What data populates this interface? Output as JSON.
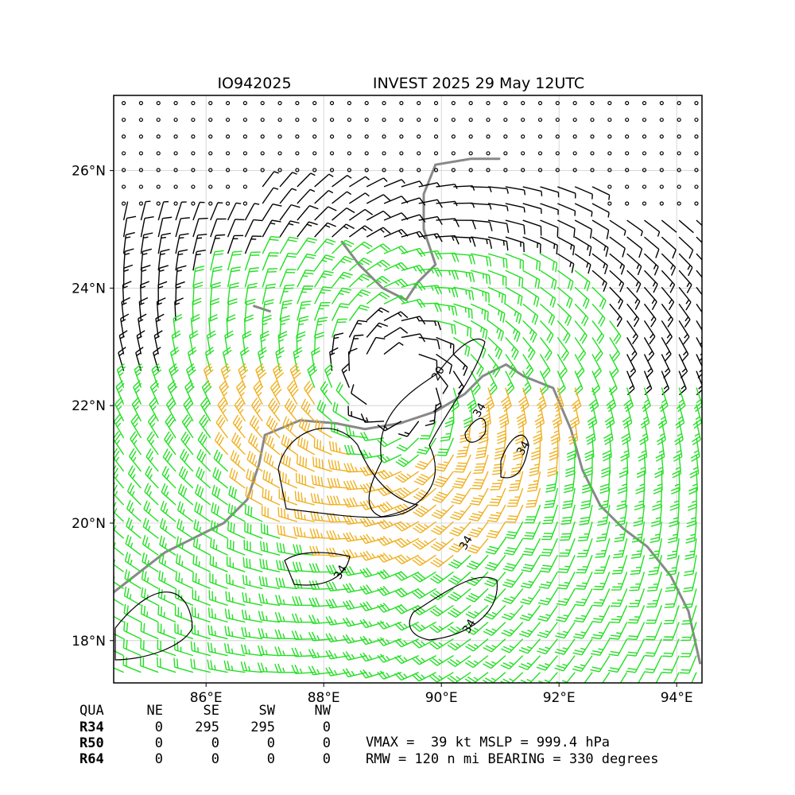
{
  "chart_data": {
    "type": "windbarb-map",
    "title_left": "IO942025",
    "title_right": "INVEST 2025 29 May 12UTC",
    "xlim": [
      84.43,
      94.43
    ],
    "ylim": [
      17.28,
      27.28
    ],
    "xticks": [
      {
        "value": 86,
        "label": "86°E"
      },
      {
        "value": 88,
        "label": "88°E"
      },
      {
        "value": 90,
        "label": "90°E"
      },
      {
        "value": 92,
        "label": "92°E"
      },
      {
        "value": 94,
        "label": "94°E"
      }
    ],
    "yticks": [
      {
        "value": 18,
        "label": "18°N"
      },
      {
        "value": 20,
        "label": "20°N"
      },
      {
        "value": 22,
        "label": "22°N"
      },
      {
        "value": 24,
        "label": "24°N"
      },
      {
        "value": 26,
        "label": "26°N"
      }
    ],
    "grid": true,
    "contour_levels": [
      20,
      34
    ],
    "table": {
      "header": [
        "QUA",
        "NE",
        "SE",
        "SW",
        "NW"
      ],
      "rows": [
        [
          "R34",
          0,
          295,
          295,
          0
        ],
        [
          "R50",
          0,
          0,
          0,
          0
        ],
        [
          "R64",
          0,
          0,
          0,
          0
        ]
      ]
    },
    "summary": [
      "VMAX =  39 kt MSLP = 999.4 hPa",
      "RMW = 120 n mi BEARING = 330 degrees"
    ]
  }
}
